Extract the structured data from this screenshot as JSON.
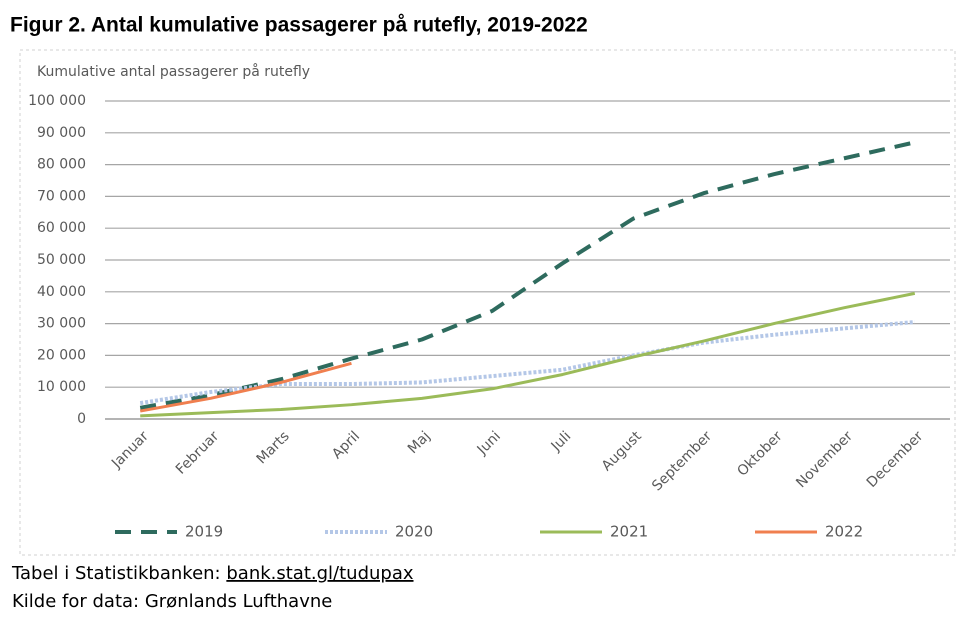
{
  "chart_data": {
    "type": "line",
    "title": "Figur 2. Antal kumulative passagerer på rutefly, 2019-2022",
    "y_label": "Kumulative antal passagerer på rutefly",
    "categories": [
      "Januar",
      "Februar",
      "Marts",
      "April",
      "Maj",
      "Juni",
      "Juli",
      "August",
      "September",
      "Oktober",
      "November",
      "December"
    ],
    "series": [
      {
        "name": "2019",
        "color": "#2e6b5e",
        "style": "dashed",
        "values": [
          3500,
          7500,
          12500,
          19000,
          25000,
          34000,
          49000,
          63000,
          71000,
          77000,
          82000,
          87000
        ]
      },
      {
        "name": "2020",
        "color": "#b4c7e7",
        "style": "dotted",
        "values": [
          5000,
          8500,
          11000,
          11000,
          11500,
          13500,
          15500,
          20000,
          24000,
          26500,
          28500,
          30500
        ]
      },
      {
        "name": "2021",
        "color": "#9bbb59",
        "style": "solid",
        "values": [
          1000,
          2000,
          3000,
          4500,
          6500,
          9500,
          14000,
          19500,
          24500,
          30000,
          35000,
          39500
        ]
      },
      {
        "name": "2022",
        "color": "#f07f4f",
        "style": "solid",
        "values": [
          2500,
          6500,
          11500,
          17500,
          null,
          null,
          null,
          null,
          null,
          null,
          null,
          null
        ]
      }
    ],
    "ylim": [
      0,
      100000
    ],
    "yticks": [
      0,
      {
        "value": 10000,
        "label": "10 000"
      },
      {
        "value": 20000,
        "label": "20 000"
      },
      {
        "value": 30000,
        "label": "30 000"
      },
      {
        "value": 40000,
        "label": "40 000"
      },
      {
        "value": 50000,
        "label": "50 000"
      },
      {
        "value": 60000,
        "label": "60 000"
      },
      {
        "value": 70000,
        "label": "70 000"
      },
      {
        "value": 80000,
        "label": "80 000"
      },
      {
        "value": 90000,
        "label": "90 000"
      },
      {
        "value": 100000,
        "label": "100 000"
      }
    ],
    "grid": true,
    "legend": "bottom"
  },
  "footer": {
    "source_label": "Tabel i Statistikbanken:",
    "source_link": "bank.stat.gl/tudupax",
    "credit": "Kilde for data: Grønlands Lufthavne"
  }
}
